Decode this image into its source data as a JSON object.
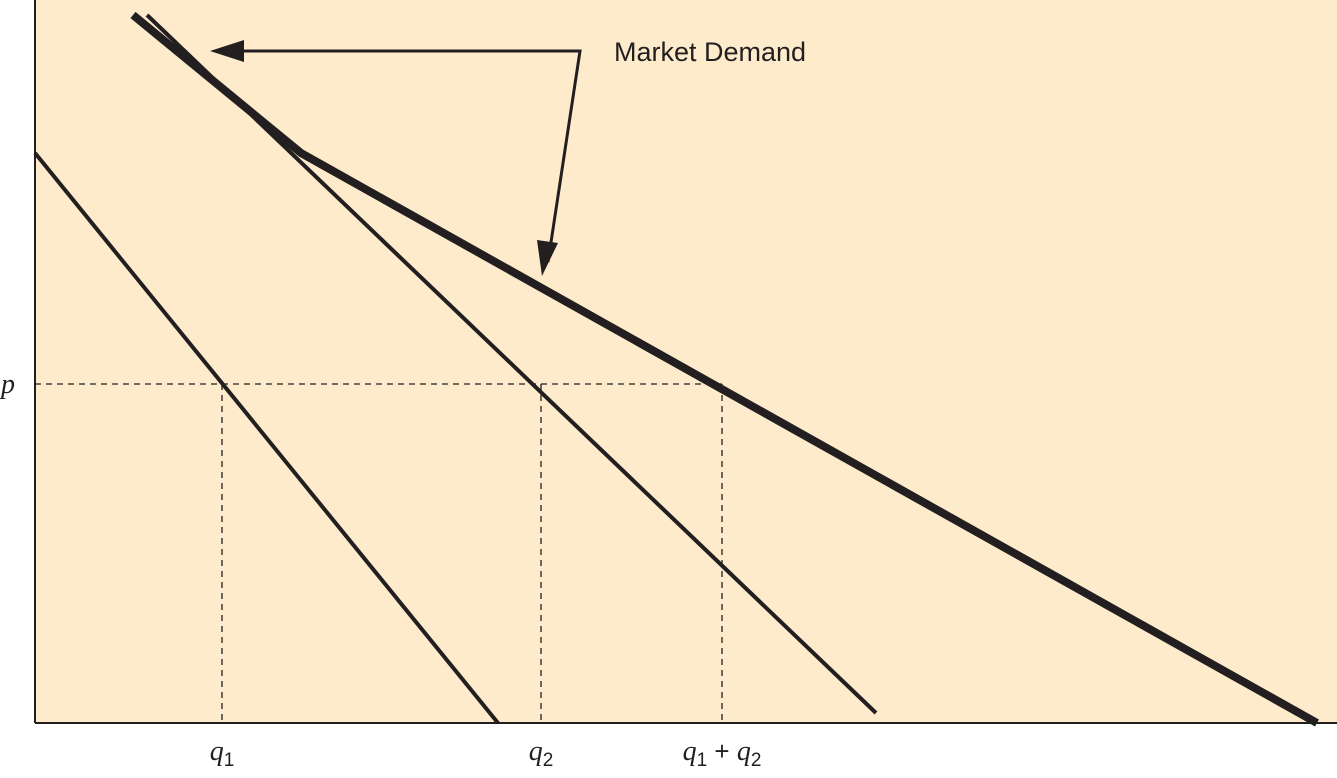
{
  "chart_data": {
    "type": "line",
    "title": "",
    "xlabel": "",
    "ylabel": "",
    "xlim": [
      0,
      1290
    ],
    "ylim": [
      0,
      708
    ],
    "grid": false,
    "price_label": "p",
    "price_level": 339,
    "annotation": "Market Demand",
    "x_ticks": [
      {
        "value": 187,
        "main": "q",
        "sub": "1"
      },
      {
        "value": 506,
        "main": "q",
        "sub": "2"
      },
      {
        "value": 687,
        "main": "q",
        "sub": "1",
        "op": "+",
        "main2": "q",
        "sub2": "2"
      }
    ],
    "series": [
      {
        "role": "individual",
        "points": [
          [
            0,
            570
          ],
          [
            463,
            0
          ]
        ]
      },
      {
        "role": "individual",
        "points": [
          [
            112,
            708
          ],
          [
            841,
            10
          ]
        ]
      },
      {
        "role": "market",
        "points": [
          [
            98,
            708
          ],
          [
            266,
            570
          ],
          [
            1282,
            0
          ]
        ]
      }
    ],
    "colors": {
      "background": "#fdebcb",
      "line": "#231f20"
    }
  }
}
